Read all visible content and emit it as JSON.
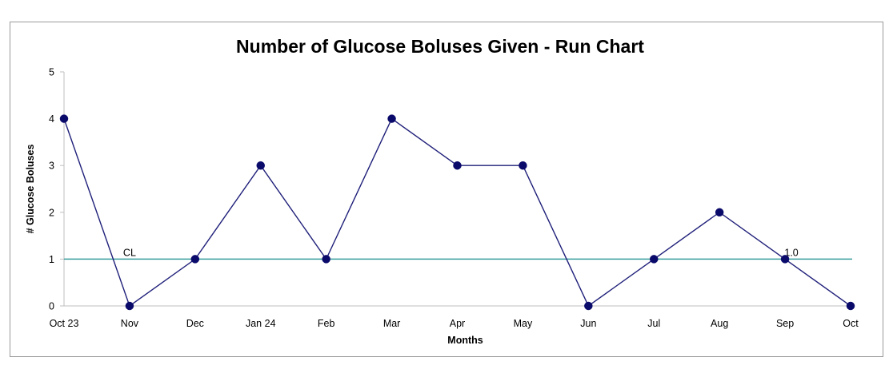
{
  "chart_data": {
    "type": "line",
    "title": "Number of Glucose Boluses Given - Run Chart",
    "xlabel": "Months",
    "ylabel": "# Glucose Boluses",
    "categories": [
      "Oct 23",
      "Nov",
      "Dec",
      "Jan 24",
      "Feb",
      "Mar",
      "Apr",
      "May",
      "Jun",
      "Jul",
      "Aug",
      "Sep",
      "Oct"
    ],
    "series": [
      {
        "values": [
          4,
          0,
          1,
          3,
          1,
          4,
          3,
          3,
          0,
          1,
          2,
          1,
          0
        ],
        "color": "#1f1f7a",
        "marker_color": "#0a0a6b"
      }
    ],
    "center_line": {
      "value": 1,
      "label": "CL",
      "value_label": "1.0",
      "color": "#3a9e9e"
    },
    "ylim": [
      0,
      5
    ],
    "yticks": [
      0,
      1,
      2,
      3,
      4,
      5
    ],
    "grid": false,
    "legend": "none"
  }
}
